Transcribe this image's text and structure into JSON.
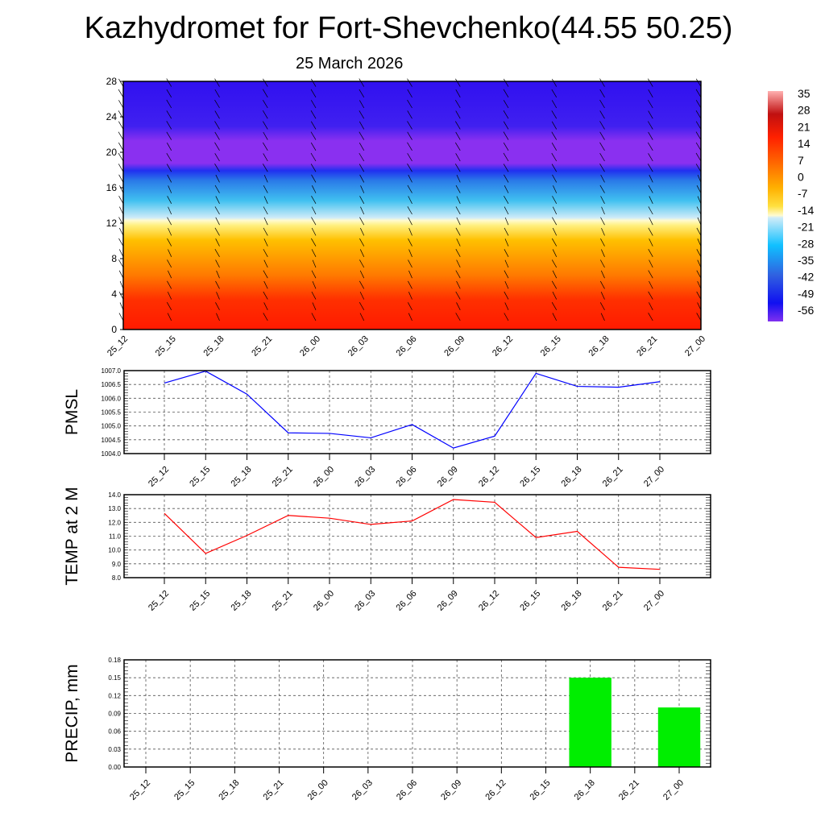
{
  "title": "Kazhydromet for Fort-Shevchenko(44.55 50.25)",
  "subtitle": "25 March 2026",
  "chart_data": [
    {
      "type": "heatmap",
      "name": "cross-section",
      "yticks": [
        "0",
        "4",
        "8",
        "12",
        "16",
        "20",
        "24",
        "28"
      ],
      "ylim": [
        0,
        28
      ],
      "categories": [
        "25_12",
        "25_15",
        "25_18",
        "25_21",
        "26_00",
        "26_03",
        "26_06",
        "26_09",
        "26_12",
        "26_15",
        "26_18",
        "26_21",
        "27_00"
      ],
      "colorbar": {
        "labels": [
          "35",
          "28",
          "21",
          "14",
          "7",
          "0",
          "-7",
          "-14",
          "-21",
          "-28",
          "-35",
          "-42",
          "-49",
          "-56"
        ],
        "range": [
          -60,
          38
        ]
      }
    },
    {
      "type": "line",
      "ylabel": "PMSL",
      "ylim": [
        1004,
        1007
      ],
      "yticks": [
        "1004.0",
        "1004.5",
        "1005.0",
        "1005.5",
        "1006.0",
        "1006.5",
        "1007.0"
      ],
      "categories": [
        "25_12",
        "25_15",
        "25_18",
        "25_21",
        "26_00",
        "26_03",
        "26_06",
        "26_09",
        "26_12",
        "26_15",
        "26_18",
        "26_21",
        "27_00"
      ],
      "values": [
        1006.55,
        1006.98,
        1006.15,
        1004.75,
        1004.73,
        1004.57,
        1005.05,
        1004.2,
        1004.63,
        1006.9,
        1006.43,
        1006.4,
        1006.6
      ],
      "color": "#0000ff"
    },
    {
      "type": "line",
      "ylabel": "TEMP at 2 M",
      "ylim": [
        8,
        14
      ],
      "yticks": [
        "8.0",
        "9.0",
        "10.0",
        "11.0",
        "12.0",
        "13.0",
        "14.0"
      ],
      "categories": [
        "25_12",
        "25_15",
        "25_18",
        "25_21",
        "26_00",
        "26_03",
        "26_06",
        "26_09",
        "26_12",
        "26_15",
        "26_18",
        "26_21",
        "27_00"
      ],
      "values": [
        12.65,
        9.75,
        11.05,
        12.5,
        12.3,
        11.85,
        12.1,
        13.65,
        13.45,
        10.9,
        11.35,
        8.75,
        8.6
      ],
      "color": "#ff0000"
    },
    {
      "type": "bar",
      "ylabel": "PRECIP, mm",
      "ylim": [
        0,
        0.18
      ],
      "yticks": [
        "0.00",
        "0.03",
        "0.06",
        "0.09",
        "0.12",
        "0.15",
        "0.18"
      ],
      "categories": [
        "25_12",
        "25_15",
        "25_18",
        "25_21",
        "26_00",
        "26_03",
        "26_06",
        "26_09",
        "26_12",
        "26_15",
        "26_18",
        "26_21",
        "27_00"
      ],
      "values": [
        0,
        0,
        0,
        0,
        0,
        0,
        0,
        0,
        0,
        0,
        0.15,
        0,
        0.1
      ],
      "color": "#00ee00"
    }
  ]
}
